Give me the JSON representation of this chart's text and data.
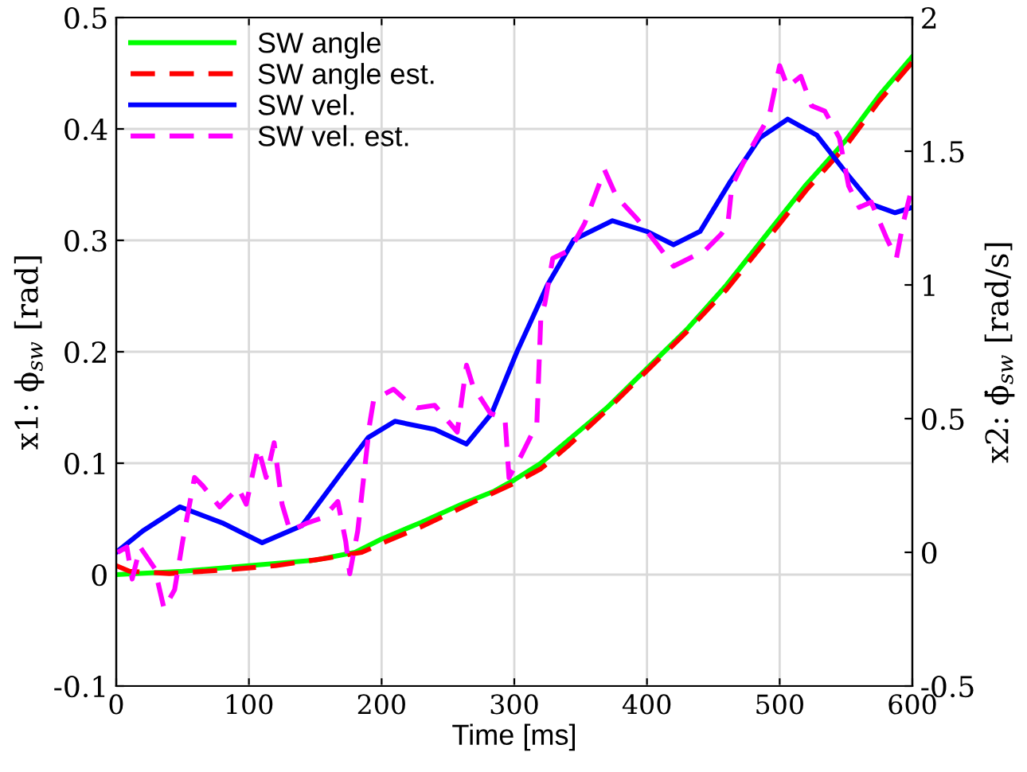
{
  "chart_data": {
    "type": "line",
    "xlabel": "Time [ms]",
    "ylabel": "x1: ϕ$_{sw}$ [rad]",
    "y2label": "x2: ϕ̇$_{sw}$ [rad/s]",
    "xlim": [
      0,
      600
    ],
    "xticks": [
      0,
      100,
      200,
      300,
      400,
      500,
      600
    ],
    "ylim": [
      -0.1,
      0.5
    ],
    "yticks": [
      -0.1,
      0,
      0.1,
      0.2,
      0.3,
      0.4,
      0.5
    ],
    "y2lim": [
      -0.5,
      2
    ],
    "y2ticks": [
      -0.5,
      0,
      0.5,
      1,
      1.5,
      2
    ],
    "grid": true,
    "legend": "top left",
    "series": [
      {
        "name": "SW angle",
        "color": "#00ff00",
        "line_style": "solid",
        "x": [
          0,
          50,
          100,
          150,
          180,
          200,
          230,
          260,
          285,
          300,
          320,
          340,
          370,
          400,
          430,
          460,
          500,
          520,
          550,
          575,
          600
        ],
        "values": [
          0,
          0.003,
          0.008,
          0.013,
          0.02,
          0.032,
          0.047,
          0.063,
          0.075,
          0.085,
          0.1,
          0.12,
          0.15,
          0.185,
          0.22,
          0.26,
          0.32,
          0.35,
          0.39,
          0.43,
          0.465
        ]
      },
      {
        "name": "SW angle est.",
        "color": "#ff0000",
        "line_style": "dashed",
        "x": [
          0,
          10,
          40,
          80,
          120,
          160,
          185,
          200,
          230,
          260,
          300,
          320,
          340,
          370,
          400,
          430,
          460,
          500,
          520,
          550,
          575,
          600
        ],
        "values": [
          0.008,
          0.003,
          0.001,
          0.004,
          0.008,
          0.015,
          0.02,
          0.028,
          0.043,
          0.06,
          0.082,
          0.095,
          0.115,
          0.148,
          0.183,
          0.218,
          0.256,
          0.315,
          0.345,
          0.385,
          0.425,
          0.46
        ]
      },
      {
        "name": "SW vel.",
        "color": "#0000ff",
        "line_style": "solid",
        "axis": "y2",
        "x": [
          0,
          20,
          48,
          80,
          110,
          140,
          170,
          190,
          210,
          240,
          264,
          283,
          302,
          325,
          345,
          374,
          400,
          420,
          440,
          462,
          485,
          506,
          528,
          550,
          570,
          587,
          600
        ],
        "values": [
          0,
          0.08,
          0.17,
          0.11,
          0.036,
          0.1,
          0.3,
          0.43,
          0.49,
          0.46,
          0.405,
          0.52,
          0.75,
          1.0,
          1.17,
          1.24,
          1.2,
          1.15,
          1.2,
          1.38,
          1.55,
          1.62,
          1.56,
          1.42,
          1.3,
          1.27,
          1.29
        ]
      },
      {
        "name": "SW vel. est.",
        "color": "#ff00ff",
        "line_style": "dashed",
        "axis": "y2",
        "x": [
          1,
          8,
          12,
          18,
          29,
          36,
          44,
          50,
          59,
          65,
          78,
          92,
          98,
          107,
          113,
          119,
          125,
          131,
          144,
          156,
          167,
          173,
          176,
          182,
          191,
          194,
          209,
          218,
          227,
          240,
          257,
          264,
          269,
          282,
          293,
          296,
          305,
          317,
          320,
          323,
          329,
          342,
          353,
          368,
          377,
          392,
          408,
          420,
          432,
          444,
          456,
          461,
          464,
          476,
          492,
          500,
          506,
          516,
          524,
          534,
          545,
          552,
          560,
          569,
          581,
          588,
          593,
          599
        ],
        "values": [
          0.0,
          0.02,
          -0.1,
          0.02,
          -0.06,
          -0.21,
          -0.14,
          0.04,
          0.28,
          0.25,
          0.17,
          0.24,
          0.18,
          0.39,
          0.28,
          0.41,
          0.18,
          0.08,
          0.11,
          0.13,
          0.19,
          0.04,
          -0.08,
          0.08,
          0.48,
          0.57,
          0.61,
          0.57,
          0.54,
          0.55,
          0.45,
          0.7,
          0.62,
          0.52,
          0.5,
          0.28,
          0.36,
          0.48,
          0.88,
          0.93,
          1.1,
          1.13,
          1.23,
          1.43,
          1.33,
          1.25,
          1.15,
          1.07,
          1.1,
          1.13,
          1.19,
          1.23,
          1.37,
          1.49,
          1.63,
          1.82,
          1.74,
          1.78,
          1.67,
          1.65,
          1.55,
          1.37,
          1.29,
          1.31,
          1.17,
          1.1,
          1.23,
          1.35
        ]
      }
    ]
  }
}
